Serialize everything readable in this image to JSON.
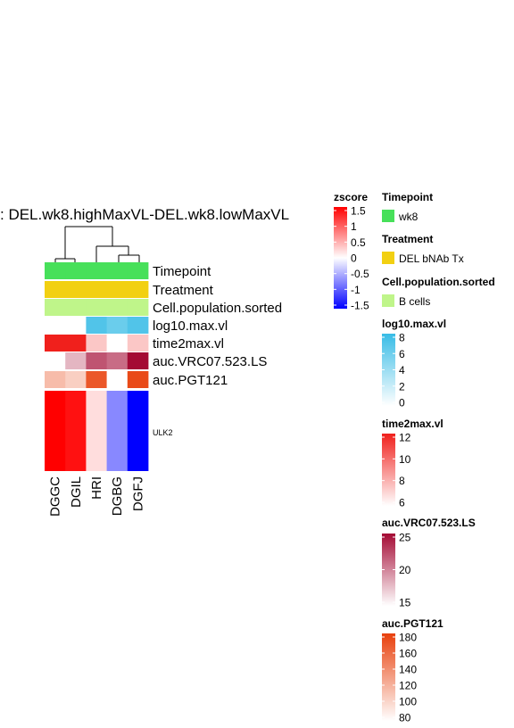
{
  "chart_data": {
    "type": "heatmap",
    "title": ": DEL.wk8.highMaxVL-DEL.wk8.lowMaxVL",
    "columns": [
      "DGGC",
      "DGIL",
      "HRI",
      "DGBG",
      "DGFJ"
    ],
    "main_row": {
      "label": "ULK2",
      "values": [
        1.5,
        1.4,
        0.2,
        -0.7,
        -1.5
      ]
    },
    "annotations": [
      {
        "label": "Timepoint",
        "values": [
          "wk8",
          "wk8",
          "wk8",
          "wk8",
          "wk8"
        ]
      },
      {
        "label": "Treatment",
        "values": [
          "DEL bNAb Tx",
          "DEL bNAb Tx",
          "DEL bNAb Tx",
          "DEL bNAb Tx",
          "DEL bNAb Tx"
        ]
      },
      {
        "label": "Cell.population.sorted",
        "values": [
          "B cells",
          "B cells",
          "B cells",
          "B cells",
          "B cells"
        ]
      },
      {
        "label": "log10.max.vl",
        "values": [
          null,
          null,
          7.0,
          6.0,
          7.0
        ]
      },
      {
        "label": "time2max.vl",
        "values": [
          12,
          12,
          7.5,
          6,
          7.5
        ]
      },
      {
        "label": "auc.VRC07.523.LS",
        "values": [
          15,
          18,
          22,
          21,
          25
        ]
      },
      {
        "label": "auc.PGT121",
        "values": [
          115,
          105,
          168,
          80,
          175
        ]
      }
    ],
    "legends": {
      "zscore": {
        "title": "zscore",
        "ticks": [
          "1.5",
          "1",
          "0.5",
          "0",
          "-0.5",
          "-1",
          "-1.5"
        ],
        "range": [
          -1.5,
          1.5
        ],
        "colors": [
          "#0000ff",
          "#ffffff",
          "#ff0000"
        ]
      },
      "timepoint": {
        "title": "Timepoint",
        "entries": [
          {
            "label": "wk8",
            "color": "#47e05a"
          }
        ]
      },
      "treatment": {
        "title": "Treatment",
        "entries": [
          {
            "label": "DEL bNAb Tx",
            "color": "#f2d012"
          }
        ]
      },
      "cellpop": {
        "title": "Cell.population.sorted",
        "entries": [
          {
            "label": "B cells",
            "color": "#bff58a"
          }
        ]
      },
      "log10": {
        "title": "log10.max.vl",
        "ticks": [
          "8",
          "6",
          "4",
          "2",
          "0"
        ],
        "range": [
          0,
          8
        ],
        "colors": [
          "#ffffff",
          "#38bce6"
        ]
      },
      "time2max": {
        "title": "time2max.vl",
        "ticks": [
          "12",
          "10",
          "8",
          "6"
        ],
        "range": [
          6,
          12
        ],
        "colors": [
          "#ffffff",
          "#f0201c"
        ]
      },
      "vrc": {
        "title": "auc.VRC07.523.LS",
        "ticks": [
          "25",
          "20",
          "15"
        ],
        "range": [
          15,
          25
        ],
        "colors": [
          "#ffffff",
          "#a40a34"
        ]
      },
      "pgt": {
        "title": "auc.PGT121",
        "ticks": [
          "180",
          "160",
          "140",
          "120",
          "100",
          "80"
        ],
        "range": [
          80,
          180
        ],
        "colors": [
          "#ffffff",
          "#e8400c"
        ]
      }
    }
  }
}
